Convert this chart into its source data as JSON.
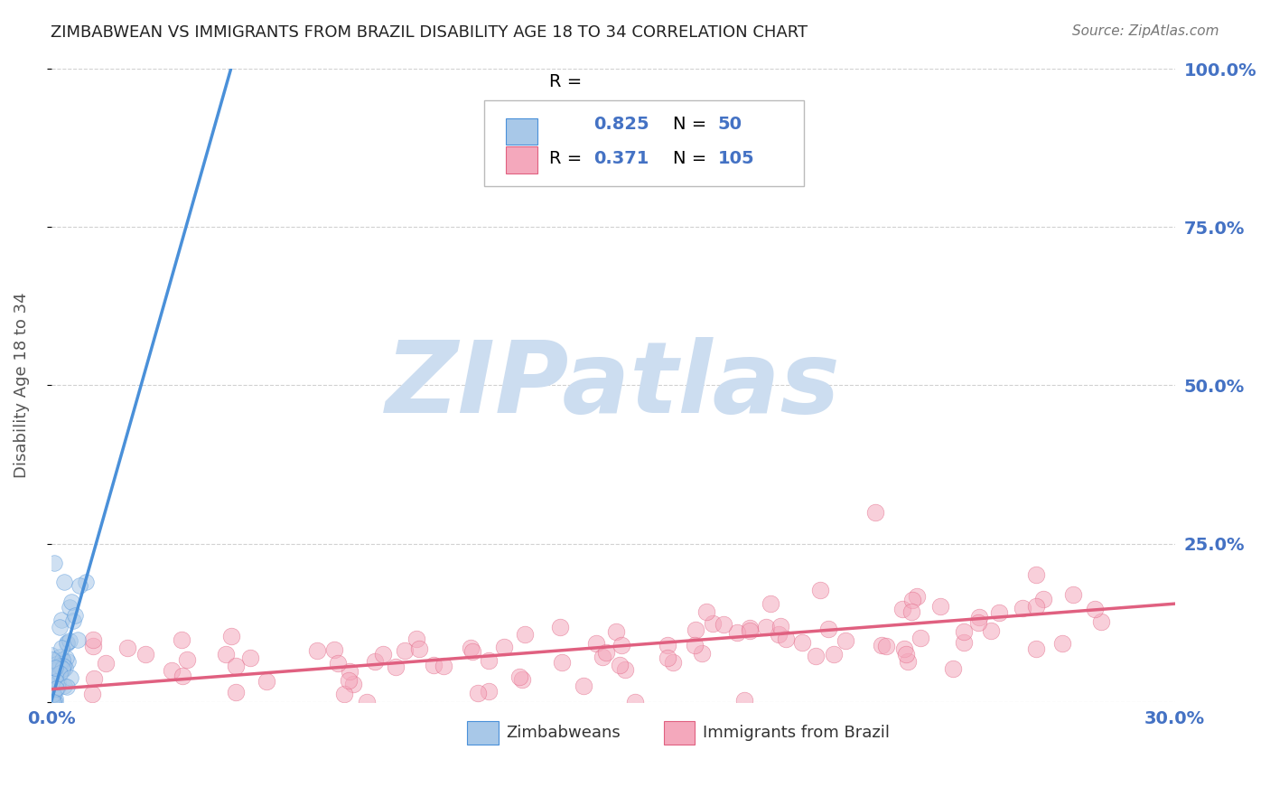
{
  "title": "ZIMBABWEAN VS IMMIGRANTS FROM BRAZIL DISABILITY AGE 18 TO 34 CORRELATION CHART",
  "source": "Source: ZipAtlas.com",
  "ylabel": "Disability Age 18 to 34",
  "xlim": [
    0.0,
    0.3
  ],
  "ylim": [
    0.0,
    1.0
  ],
  "yticks": [
    0.0,
    0.25,
    0.5,
    0.75,
    1.0
  ],
  "ytick_labels": [
    "",
    "25.0%",
    "50.0%",
    "75.0%",
    "100.0%"
  ],
  "xtick_labels": [
    "0.0%",
    "30.0%"
  ],
  "legend_r1": "0.825",
  "legend_n1": "50",
  "legend_r2": "0.371",
  "legend_n2": "105",
  "color_blue": "#a8c8e8",
  "color_pink": "#f4a8bc",
  "color_blue_line": "#4a90d9",
  "color_pink_line": "#e06080",
  "color_axis_label": "#555555",
  "color_tick": "#4472C4",
  "watermark_color": "#ccddf0",
  "watermark_text": "ZIPatlas",
  "background_color": "#ffffff",
  "grid_color": "#cccccc"
}
